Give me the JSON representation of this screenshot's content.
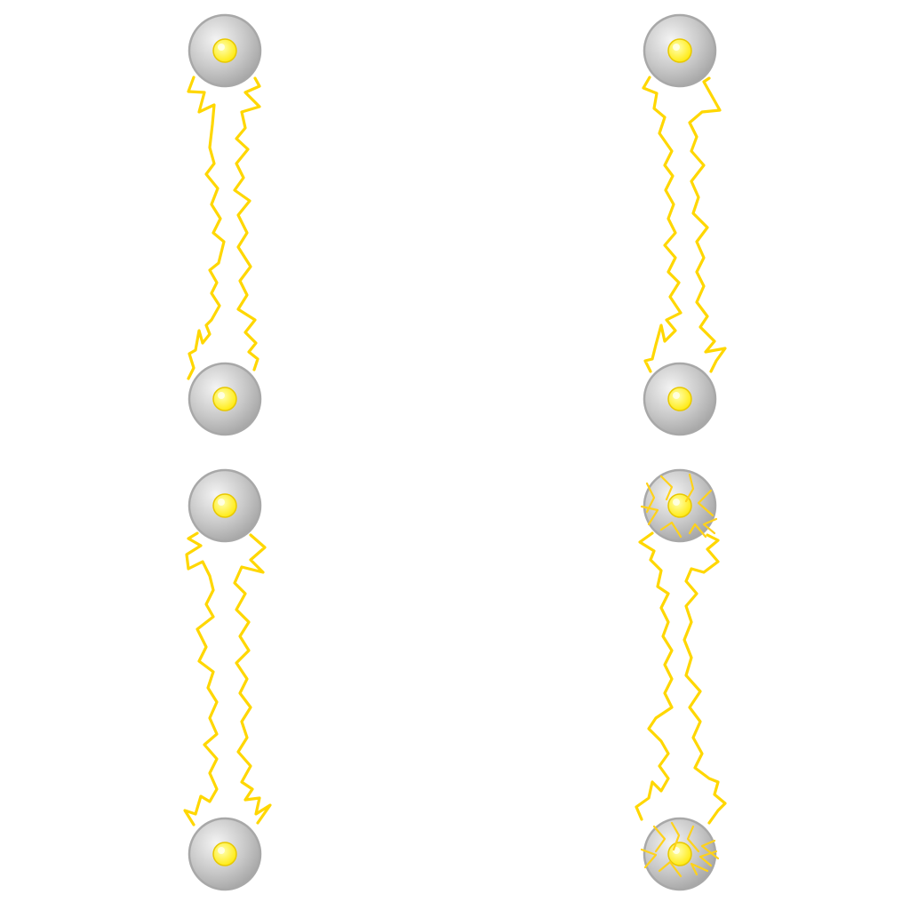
{
  "sprite_sheet": {
    "kind": "lightning-tether-animation",
    "frame_count": 4,
    "colors": {
      "bolt": "#FFD700",
      "spark": "#FFD21A",
      "orb_light": "#F4F4F4",
      "orb_mid": "#C8C8C8",
      "orb_dark": "#9E9E9E",
      "orb_outline": "#A8A8A8",
      "core_center": "#FFFFB0",
      "core_edge": "#FFE800",
      "core_outline": "#E8C800"
    },
    "frames": [
      {
        "id": "frame-1",
        "orbs": [
          "node-orb-top",
          "node-orb-bottom"
        ],
        "bolts": 2,
        "sparks": false
      },
      {
        "id": "frame-2",
        "orbs": [
          "node-orb-top",
          "node-orb-bottom"
        ],
        "bolts": 2,
        "sparks": false
      },
      {
        "id": "frame-3",
        "orbs": [
          "node-orb-top",
          "node-orb-bottom"
        ],
        "bolts": 2,
        "sparks": false
      },
      {
        "id": "frame-4",
        "orbs": [
          "node-orb-top",
          "node-orb-bottom"
        ],
        "bolts": 2,
        "sparks": true
      }
    ]
  }
}
